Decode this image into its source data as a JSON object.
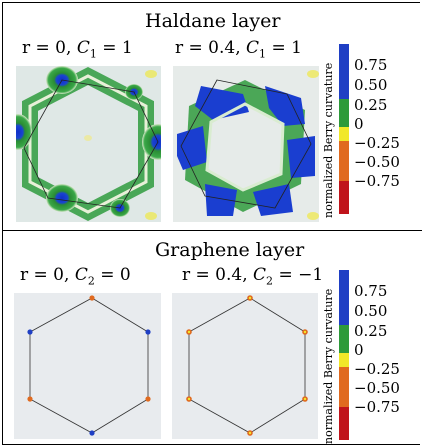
{
  "haldane": {
    "title": "Haldane layer",
    "panels": [
      {
        "r_text": "r = 0,",
        "chern_symbol": "C",
        "chern_index": "1",
        "chern_value": "= 1"
      },
      {
        "r_text": "r = 0.4,",
        "chern_symbol": "C",
        "chern_index": "1",
        "chern_value": "= 1"
      }
    ]
  },
  "graphene": {
    "title": "Graphene layer",
    "panels": [
      {
        "r_text": "r = 0,",
        "chern_symbol": "C",
        "chern_index": "2",
        "chern_value": "= 0"
      },
      {
        "r_text": "r = 0.4,",
        "chern_symbol": "C",
        "chern_index": "2",
        "chern_value": "= −1"
      }
    ]
  },
  "colorbar": {
    "label": "normalized Berry curvature",
    "ticks": [
      "0.75",
      "0.50",
      "0.25",
      "0",
      "−0.25",
      "−0.50",
      "−0.75"
    ],
    "colors": [
      "#1f3fc4",
      "#1f3fc4",
      "#2e9a3a",
      "#f1e829",
      "#e06a1f",
      "#e06a1f",
      "#c0141b"
    ]
  }
}
